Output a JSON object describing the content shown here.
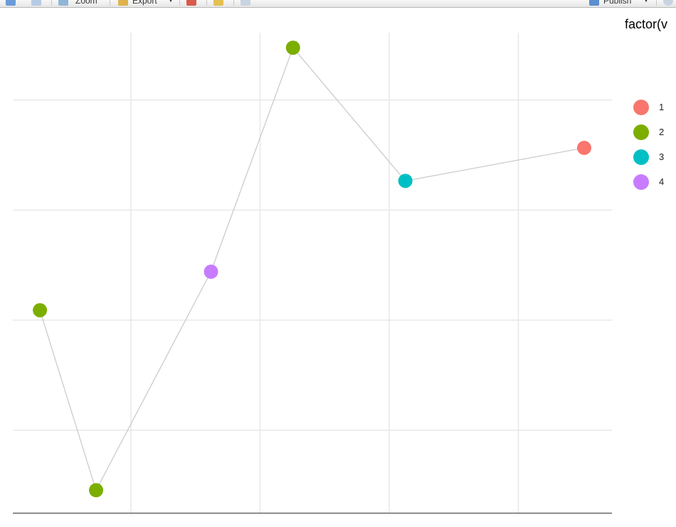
{
  "toolbar": {
    "zoom_label": "Zoom",
    "export_label": "Export",
    "publish_label": "Publish"
  },
  "colors": {
    "gridline": "#e8e8e8",
    "axis": "#333333",
    "path_line": "#c8c8c8",
    "factor_1": "#f8766d",
    "factor_2": "#7cae00",
    "factor_3": "#00bfc4",
    "factor_4": "#c77cff"
  },
  "legend": {
    "title": "factor(v",
    "items": [
      {
        "label": "1",
        "color": "#f8766d"
      },
      {
        "label": "2",
        "color": "#7cae00"
      },
      {
        "label": "3",
        "color": "#00bfc4"
      },
      {
        "label": "4",
        "color": "#c77cff"
      }
    ]
  },
  "chart_data": {
    "type": "scatter",
    "title": "",
    "xlabel": "",
    "ylabel": "",
    "grid": true,
    "xlim": [
      0,
      9.28
    ],
    "ylim": [
      0,
      8.8
    ],
    "x_gridlines": [
      1.83,
      3.83,
      5.83,
      7.83
    ],
    "y_gridlines": [
      1.5,
      3.5,
      5.5,
      7.5
    ],
    "legend_position": "right",
    "points": [
      {
        "x": 0.42,
        "y": 3.68,
        "group": "2"
      },
      {
        "x": 1.29,
        "y": 0.41,
        "group": "2"
      },
      {
        "x": 3.07,
        "y": 4.38,
        "group": "4"
      },
      {
        "x": 4.34,
        "y": 8.45,
        "group": "2"
      },
      {
        "x": 6.08,
        "y": 6.03,
        "group": "3"
      },
      {
        "x": 8.85,
        "y": 6.63,
        "group": "1"
      }
    ],
    "path_order": [
      0,
      1,
      2,
      3,
      4,
      5
    ]
  }
}
